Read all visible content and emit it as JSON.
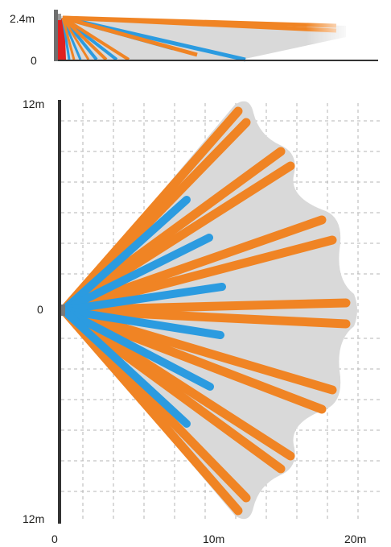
{
  "side_view": {
    "height_label": "2.4m",
    "zero_label": "0"
  },
  "top_view": {
    "y_top_label": "12m",
    "y_mid_label": "0",
    "y_bottom_label": "12m",
    "x_labels": [
      "0",
      "10m",
      "20m"
    ]
  },
  "colors": {
    "long_range_zone": "#f08424",
    "short_range_zone": "#2b9be0",
    "coverage_fill": "#d9d9d9",
    "near_field_zone": "#e02020",
    "axis": "#333333",
    "grid": "#b5b5b5"
  }
}
